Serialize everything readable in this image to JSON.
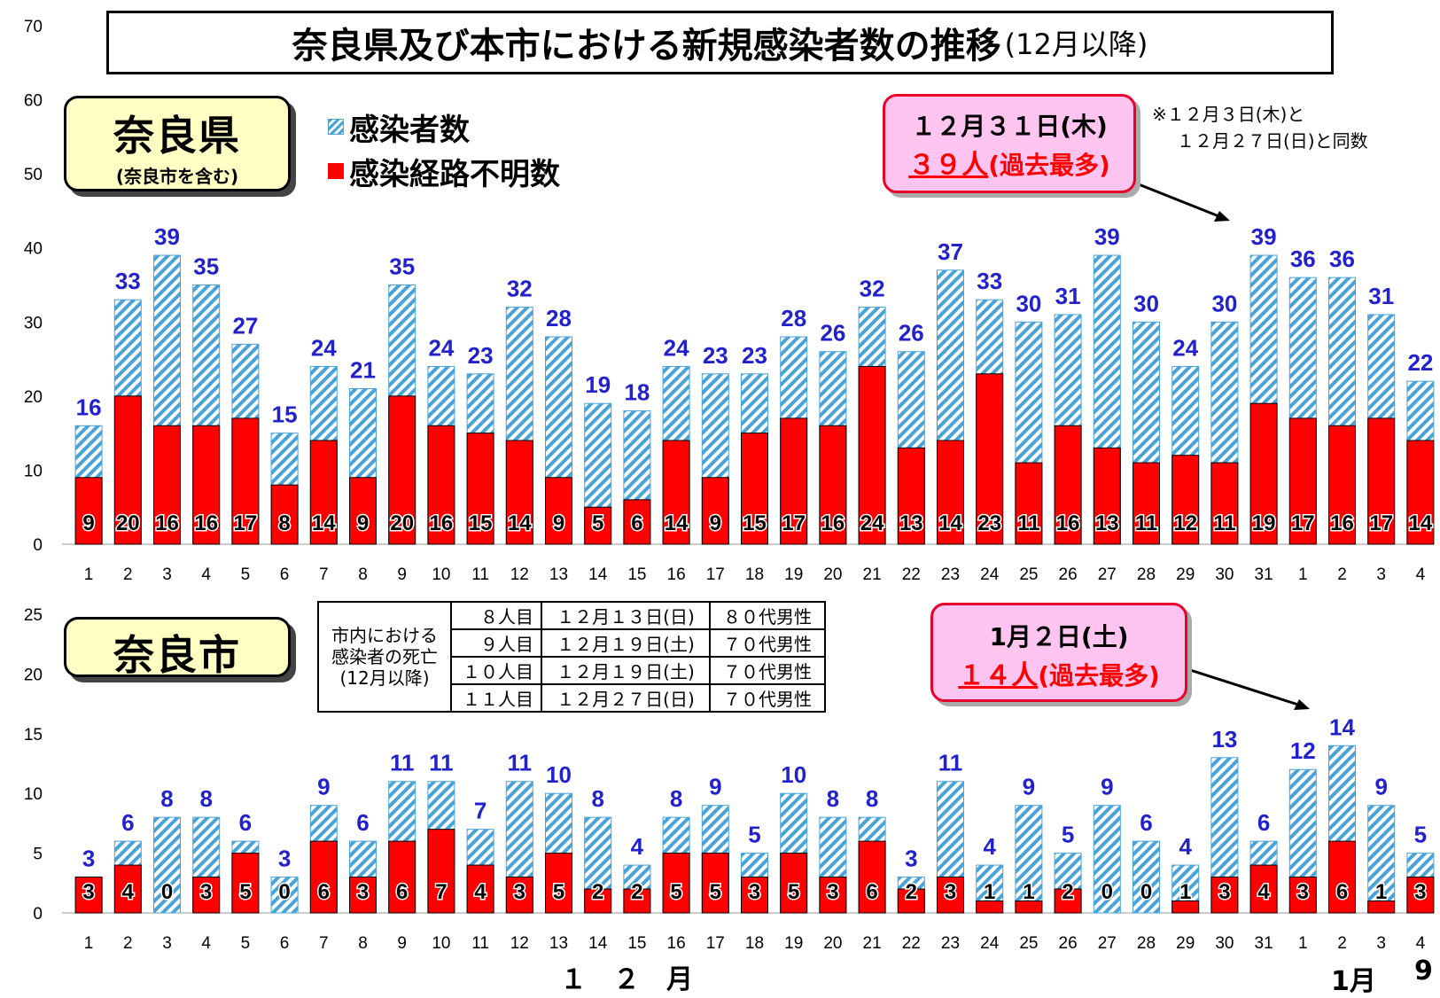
{
  "title": {
    "main": "奈良県及び本市における新規感染者数の推移",
    "sub": "(12月以降)"
  },
  "legend": {
    "total": "感染者数",
    "unknown": "感染経路不明数"
  },
  "colors": {
    "hatch": "#4aa3d8",
    "unknown": "#ff0000",
    "value_label": "#2222cc",
    "callout_bg": "#ffc4f0",
    "label_bg": "#ffffc4"
  },
  "prefecture": {
    "label": "奈良県",
    "sublabel": "(奈良市を含む)",
    "callout": {
      "date": "１２月３１日(木)",
      "value": "３９人",
      "suffix": "(過去最多)"
    },
    "note": [
      "※１２月３日(木)と",
      "１２月２７日(日)と同数"
    ]
  },
  "city": {
    "label": "奈良市",
    "callout": {
      "date": "1月２日(土)",
      "value": "１４人",
      "suffix": "(過去最多)"
    },
    "deaths_table": {
      "header": [
        "市内における",
        "感染者の死亡",
        "(12月以降)"
      ],
      "rows": [
        [
          "８人目",
          "１２月１３日(日)",
          "８０代男性"
        ],
        [
          "９人目",
          "１２月１９日(土)",
          "７０代男性"
        ],
        [
          "１０人目",
          "１２月１９日(土)",
          "７０代男性"
        ],
        [
          "１１人目",
          "１２月２７日(日)",
          "７０代男性"
        ]
      ]
    }
  },
  "months": {
    "dec": "１　２　月",
    "jan": "1月"
  },
  "page_number": "9",
  "chart_data": [
    {
      "type": "bar",
      "name": "奈良県",
      "categories": [
        "1",
        "2",
        "3",
        "4",
        "5",
        "6",
        "7",
        "8",
        "9",
        "10",
        "11",
        "12",
        "13",
        "14",
        "15",
        "16",
        "17",
        "18",
        "19",
        "20",
        "21",
        "22",
        "23",
        "24",
        "25",
        "26",
        "27",
        "28",
        "29",
        "30",
        "31",
        "1",
        "2",
        "3",
        "4"
      ],
      "series": [
        {
          "name": "感染者数",
          "values": [
            16,
            33,
            39,
            35,
            27,
            15,
            24,
            21,
            35,
            24,
            23,
            32,
            28,
            19,
            18,
            24,
            23,
            23,
            28,
            26,
            32,
            26,
            37,
            33,
            30,
            31,
            39,
            30,
            24,
            30,
            39,
            36,
            36,
            31,
            22
          ]
        },
        {
          "name": "感染経路不明数",
          "values": [
            9,
            20,
            16,
            16,
            17,
            8,
            14,
            9,
            20,
            16,
            15,
            14,
            9,
            5,
            6,
            14,
            9,
            15,
            17,
            16,
            24,
            13,
            14,
            23,
            11,
            16,
            13,
            11,
            12,
            11,
            19,
            17,
            16,
            17,
            14
          ]
        }
      ],
      "ylim": [
        0,
        70
      ],
      "yticks": [
        0,
        10,
        20,
        30,
        40,
        50,
        60,
        70
      ],
      "grid": false
    },
    {
      "type": "bar",
      "name": "奈良市",
      "categories": [
        "1",
        "2",
        "3",
        "4",
        "5",
        "6",
        "7",
        "8",
        "9",
        "10",
        "11",
        "12",
        "13",
        "14",
        "15",
        "16",
        "17",
        "18",
        "19",
        "20",
        "21",
        "22",
        "23",
        "24",
        "25",
        "26",
        "27",
        "28",
        "29",
        "30",
        "31",
        "1",
        "2",
        "3",
        "4"
      ],
      "series": [
        {
          "name": "感染者数",
          "values": [
            3,
            6,
            8,
            8,
            6,
            3,
            9,
            6,
            11,
            11,
            7,
            11,
            10,
            8,
            4,
            8,
            9,
            5,
            10,
            8,
            8,
            3,
            11,
            4,
            9,
            5,
            9,
            6,
            4,
            13,
            6,
            12,
            14,
            9,
            5
          ]
        },
        {
          "name": "感染経路不明数",
          "values": [
            3,
            4,
            0,
            3,
            5,
            0,
            6,
            3,
            6,
            7,
            4,
            3,
            5,
            2,
            2,
            5,
            5,
            3,
            5,
            3,
            6,
            2,
            3,
            1,
            1,
            2,
            0,
            0,
            1,
            3,
            4,
            3,
            6,
            1,
            3
          ]
        }
      ],
      "ylim": [
        0,
        25
      ],
      "yticks": [
        0,
        5,
        10,
        15,
        20,
        25
      ],
      "grid": false
    }
  ]
}
